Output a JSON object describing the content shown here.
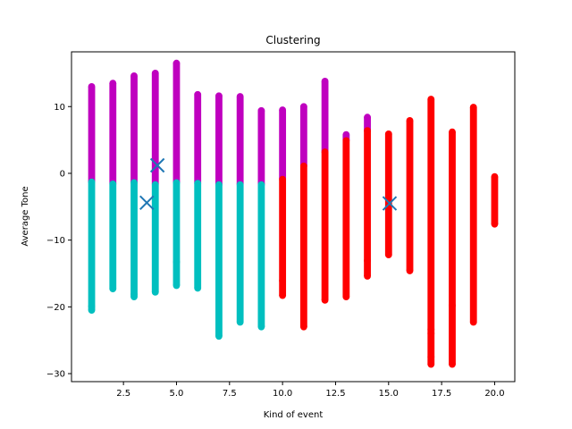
{
  "chart_data": {
    "type": "scatter",
    "title": "Clustering",
    "xlabel": "Kind of event",
    "ylabel": "Average Tone",
    "xlim": [
      0.05,
      20.95
    ],
    "ylim": [
      -31.2,
      18.2
    ],
    "xticks": [
      2.5,
      5.0,
      7.5,
      10.0,
      12.5,
      15.0,
      17.5,
      20.0
    ],
    "xtick_labels": [
      "2.5",
      "5.0",
      "7.5",
      "10.0",
      "12.5",
      "15.0",
      "17.5",
      "20.0"
    ],
    "yticks": [
      -30,
      -20,
      -10,
      0,
      10
    ],
    "ytick_labels": [
      "−30",
      "−20",
      "−10",
      "0",
      "10"
    ],
    "grid": false,
    "colors": {
      "magenta": "#bf00bf",
      "cyan": "#00bfbf",
      "red": "#ff0000",
      "centroid": "#1f77b4"
    },
    "series": [
      {
        "color": "magenta",
        "columns": [
          {
            "x": 1,
            "low": -1.2,
            "high": 13
          },
          {
            "x": 2,
            "low": -1.5,
            "high": 13.5
          },
          {
            "x": 3,
            "low": -1.3,
            "high": 14.6
          },
          {
            "x": 4,
            "low": -1.6,
            "high": 15
          },
          {
            "x": 5,
            "low": -1.3,
            "high": 16.5
          },
          {
            "x": 6,
            "low": -1.4,
            "high": 11.8
          },
          {
            "x": 7,
            "low": -1.6,
            "high": 11.6
          },
          {
            "x": 8,
            "low": -1.6,
            "high": 11.5
          },
          {
            "x": 9,
            "low": -1.6,
            "high": 9.4
          },
          {
            "x": 10,
            "low": -0.8,
            "high": 9.5
          },
          {
            "x": 11,
            "low": 1.2,
            "high": 10
          },
          {
            "x": 12,
            "low": 3.3,
            "high": 13.8
          },
          {
            "x": 13,
            "low": 5,
            "high": 5.8
          },
          {
            "x": 14,
            "low": 6.5,
            "high": 8.4
          }
        ]
      },
      {
        "color": "cyan",
        "columns": [
          {
            "x": 1,
            "low": -20.5,
            "high": -1.3
          },
          {
            "x": 2,
            "low": -17.3,
            "high": -1.6
          },
          {
            "x": 3,
            "low": -18.5,
            "high": -1.4
          },
          {
            "x": 4,
            "low": -17.8,
            "high": -1.7
          },
          {
            "x": 5,
            "low": -16.8,
            "high": -1.4
          },
          {
            "x": 6,
            "low": -17.2,
            "high": -1.5
          },
          {
            "x": 7,
            "low": -24.4,
            "high": -1.7
          },
          {
            "x": 8,
            "low": -22.3,
            "high": -1.7
          },
          {
            "x": 9,
            "low": -23,
            "high": -1.7
          }
        ]
      },
      {
        "color": "red",
        "columns": [
          {
            "x": 10,
            "low": -18.3,
            "high": -0.9
          },
          {
            "x": 11,
            "low": -23,
            "high": 1.1
          },
          {
            "x": 12,
            "low": -19,
            "high": 3.2
          },
          {
            "x": 13,
            "low": -18.5,
            "high": 4.9
          },
          {
            "x": 14,
            "low": -15.4,
            "high": 6.4
          },
          {
            "x": 15,
            "low": -12.2,
            "high": 5.9
          },
          {
            "x": 16,
            "low": -14.6,
            "high": 7.9
          },
          {
            "x": 17,
            "low": -28.6,
            "high": 11.1
          },
          {
            "x": 18,
            "low": -28.6,
            "high": 6.2
          },
          {
            "x": 19,
            "low": -22.3,
            "high": 9.9
          },
          {
            "x": 20,
            "low": -7.6,
            "high": -0.5
          }
        ]
      }
    ],
    "outliers": [
      {
        "x": 17,
        "y": -23.4,
        "color": "red"
      },
      {
        "x": 17,
        "y": -24,
        "color": "red"
      },
      {
        "x": 17,
        "y": -27.5,
        "color": "red"
      },
      {
        "x": 18,
        "y": -19.8,
        "color": "red"
      },
      {
        "x": 10,
        "y": -16.1,
        "color": "red"
      },
      {
        "x": 14,
        "y": -13.1,
        "color": "red"
      },
      {
        "x": 3,
        "y": -18.1,
        "color": "cyan"
      },
      {
        "x": 1,
        "y": -19.9,
        "color": "cyan"
      },
      {
        "x": 5,
        "y": -13.3,
        "color": "cyan"
      }
    ],
    "centroids": [
      {
        "x": 4.1,
        "y": 1.2
      },
      {
        "x": 3.6,
        "y": -4.4
      },
      {
        "x": 15.05,
        "y": -4.5
      }
    ]
  }
}
